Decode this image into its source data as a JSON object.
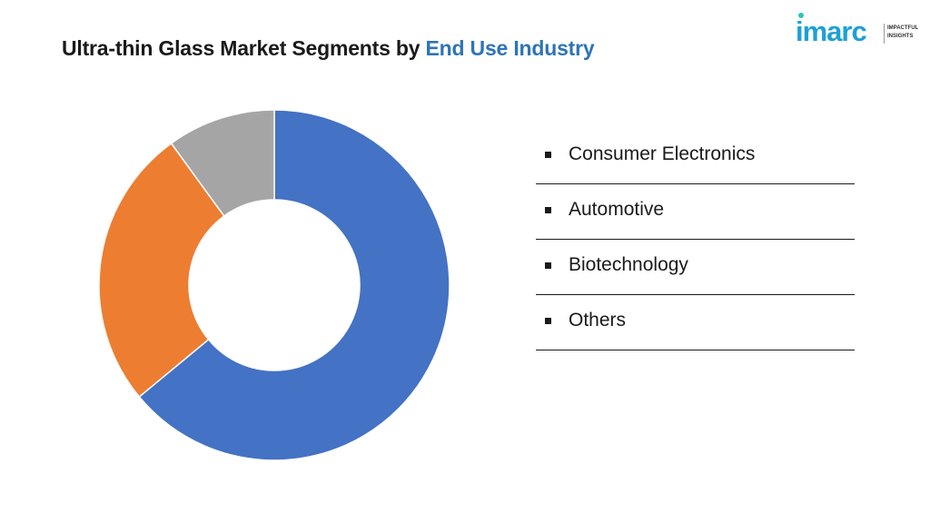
{
  "title": {
    "main": "Ultra-thin Glass Market Segments by ",
    "accent": "End Use Industry"
  },
  "logo": {
    "brand": "imarc",
    "tagline_1": "IMPACTFUL",
    "tagline_2": "INSIGHTS"
  },
  "colors": {
    "consumer_electronics": "#4472c4",
    "automotive": "#ed7d31",
    "biotechnology": "#c6c6c6",
    "others": "#a5a5a5",
    "title_accent": "#2e74b5",
    "brand": "#1ea0d6"
  },
  "legend": {
    "items": [
      {
        "label": "Consumer Electronics"
      },
      {
        "label": "Automotive"
      },
      {
        "label": "Biotechnology"
      },
      {
        "label": "Others"
      }
    ]
  },
  "chart_data": {
    "type": "pie",
    "variant": "donut",
    "categories": [
      "Consumer Electronics",
      "Automotive",
      "Biotechnology",
      "Others"
    ],
    "values": [
      64,
      26,
      0,
      10
    ],
    "unit": "%",
    "legend_position": "right"
  }
}
